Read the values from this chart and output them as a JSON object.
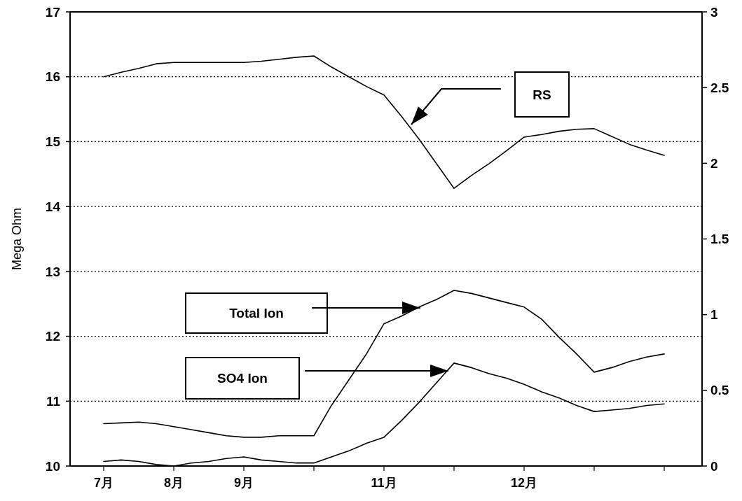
{
  "chart_data": {
    "type": "line",
    "ylabel": "Mega Ohm",
    "categories": [
      "7月",
      null,
      null,
      null,
      "8月",
      null,
      null,
      null,
      "9月",
      null,
      null,
      null,
      null,
      null,
      null,
      null,
      "11月",
      null,
      null,
      null,
      null,
      null,
      null,
      null,
      "12月",
      null,
      null,
      null,
      null,
      null,
      null,
      null,
      null
    ],
    "ylim": [
      10,
      17
    ],
    "yticks": [
      10,
      11,
      12,
      13,
      14,
      15,
      16,
      17
    ],
    "y2lim": [
      0,
      3
    ],
    "y2ticks": [
      0,
      0.5,
      1,
      1.5,
      2,
      2.5,
      3
    ],
    "grid": "y",
    "legend": false,
    "line_style": "solid",
    "marker": "none",
    "series": [
      {
        "name": "RS",
        "color": "#000000",
        "values": [
          16.0,
          16.07,
          16.13,
          16.2,
          16.22,
          16.22,
          16.22,
          16.22,
          16.22,
          16.24,
          16.27,
          16.3,
          16.32,
          16.15,
          16.0,
          15.85,
          15.72,
          15.39,
          15.04,
          14.66,
          14.28,
          14.48,
          14.66,
          14.86,
          15.07,
          15.11,
          15.16,
          15.19,
          15.2,
          15.08,
          14.96,
          14.87,
          14.79
        ]
      },
      {
        "name": "Total Ion",
        "color": "#000000",
        "axis": "y2",
        "values": [
          0.28,
          0.285,
          0.29,
          0.28,
          0.26,
          0.24,
          0.22,
          0.2,
          0.19,
          0.19,
          0.2,
          0.2,
          0.2,
          0.4,
          0.57,
          0.74,
          0.94,
          0.99,
          1.05,
          1.1,
          1.16,
          1.14,
          1.11,
          1.08,
          1.05,
          0.97,
          0.85,
          0.74,
          0.62,
          0.65,
          0.69,
          0.72,
          0.74
        ]
      },
      {
        "name": "SO4 Ion",
        "color": "#000000",
        "axis": "y2",
        "values": [
          0.03,
          0.04,
          0.03,
          0.01,
          0.0,
          0.02,
          0.03,
          0.05,
          0.06,
          0.04,
          0.03,
          0.02,
          0.02,
          0.06,
          0.1,
          0.15,
          0.19,
          0.3,
          0.42,
          0.55,
          0.68,
          0.65,
          0.61,
          0.58,
          0.54,
          0.49,
          0.45,
          0.4,
          0.36,
          0.37,
          0.38,
          0.4,
          0.41
        ]
      }
    ]
  }
}
